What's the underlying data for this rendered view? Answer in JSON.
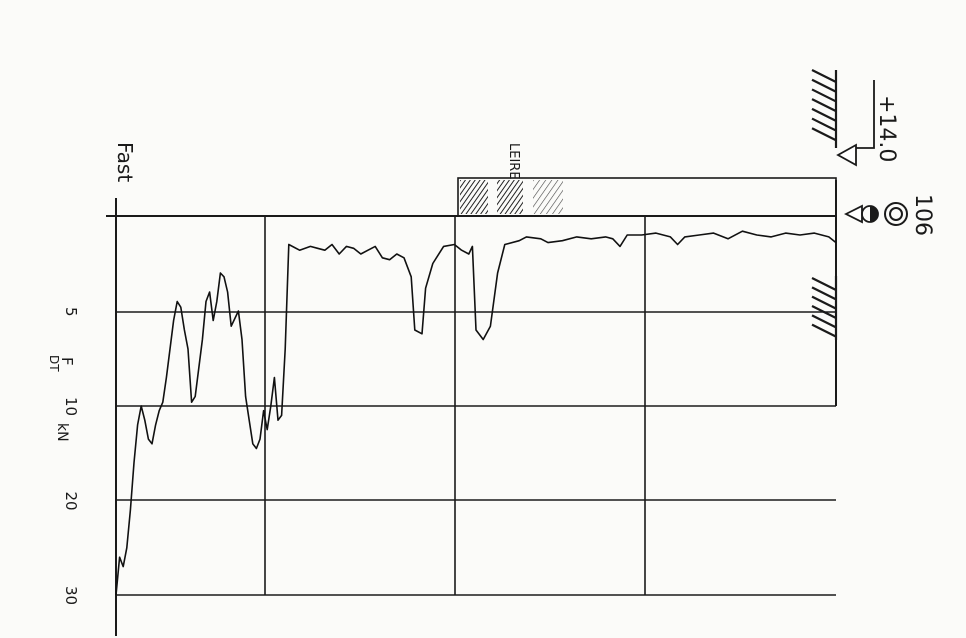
{
  "elevation": "+14.0",
  "borehole_id": "106",
  "soil_label": "LEIRE",
  "stop_label": "Fast",
  "axis": {
    "quantity": "F",
    "subscript": "DT",
    "unit": "kN",
    "ticks": [
      "5",
      "10",
      "20",
      "30"
    ]
  },
  "chart_data": {
    "type": "line",
    "title": "",
    "xlabel": "F DT kN",
    "ylabel": "",
    "xlim": [
      0,
      35
    ],
    "x_scale": "piecewise: 0–10 kN in equal 5 kN steps, 10–30 kN in equal 10 kN steps",
    "y_unit": "fraction of sounding length (0 = top, 1 = Fast)",
    "layers": [
      {
        "name": "LEIRE",
        "from": 0,
        "to": 0.53
      }
    ],
    "series": [
      {
        "name": "",
        "points": [
          [
            0.0,
            1.4
          ],
          [
            0.01,
            1.1
          ],
          [
            0.03,
            0.9
          ],
          [
            0.05,
            1.0
          ],
          [
            0.07,
            0.9
          ],
          [
            0.09,
            1.1
          ],
          [
            0.11,
            1.0
          ],
          [
            0.13,
            0.8
          ],
          [
            0.15,
            1.2
          ],
          [
            0.17,
            0.9
          ],
          [
            0.19,
            1.0
          ],
          [
            0.21,
            1.1
          ],
          [
            0.22,
            1.5
          ],
          [
            0.23,
            1.1
          ],
          [
            0.25,
            0.9
          ],
          [
            0.27,
            1.0
          ],
          [
            0.29,
            1.0
          ],
          [
            0.3,
            1.6
          ],
          [
            0.31,
            1.2
          ],
          [
            0.32,
            1.1
          ],
          [
            0.34,
            1.2
          ],
          [
            0.36,
            1.1
          ],
          [
            0.38,
            1.3
          ],
          [
            0.4,
            1.4
          ],
          [
            0.41,
            1.2
          ],
          [
            0.43,
            1.1
          ],
          [
            0.44,
            1.3
          ],
          [
            0.46,
            1.5
          ],
          [
            0.47,
            3.0
          ],
          [
            0.48,
            5.8
          ],
          [
            0.49,
            6.5
          ],
          [
            0.5,
            6.0
          ],
          [
            0.505,
            1.6
          ],
          [
            0.51,
            2.0
          ],
          [
            0.52,
            1.8
          ],
          [
            0.53,
            1.5
          ],
          [
            0.545,
            1.6
          ],
          [
            0.56,
            2.5
          ],
          [
            0.57,
            3.8
          ],
          [
            0.575,
            6.2
          ],
          [
            0.585,
            6.0
          ],
          [
            0.59,
            3.2
          ],
          [
            0.6,
            2.2
          ],
          [
            0.61,
            2.0
          ],
          [
            0.62,
            2.3
          ],
          [
            0.63,
            2.2
          ],
          [
            0.64,
            1.6
          ],
          [
            0.65,
            1.8
          ],
          [
            0.66,
            2.0
          ],
          [
            0.67,
            1.7
          ],
          [
            0.68,
            1.6
          ],
          [
            0.69,
            2.0
          ],
          [
            0.7,
            1.5
          ],
          [
            0.71,
            1.8
          ],
          [
            0.72,
            1.7
          ],
          [
            0.73,
            1.6
          ],
          [
            0.745,
            1.8
          ],
          [
            0.76,
            1.5
          ],
          [
            0.765,
            7.0
          ],
          [
            0.77,
            11.0
          ],
          [
            0.775,
            11.5
          ],
          [
            0.78,
            8.5
          ],
          [
            0.785,
            10.0
          ],
          [
            0.79,
            12.5
          ],
          [
            0.795,
            10.5
          ],
          [
            0.8,
            13.5
          ],
          [
            0.805,
            14.5
          ],
          [
            0.81,
            14.0
          ],
          [
            0.815,
            11.5
          ],
          [
            0.82,
            9.5
          ],
          [
            0.825,
            6.5
          ],
          [
            0.83,
            5.0
          ],
          [
            0.84,
            5.8
          ],
          [
            0.845,
            4.0
          ],
          [
            0.85,
            3.2
          ],
          [
            0.855,
            3.0
          ],
          [
            0.86,
            4.5
          ],
          [
            0.865,
            5.5
          ],
          [
            0.87,
            4.0
          ],
          [
            0.875,
            4.5
          ],
          [
            0.88,
            6.5
          ],
          [
            0.885,
            8.0
          ],
          [
            0.89,
            9.5
          ],
          [
            0.895,
            9.8
          ],
          [
            0.9,
            7.0
          ],
          [
            0.905,
            6.0
          ],
          [
            0.91,
            4.8
          ],
          [
            0.915,
            4.5
          ],
          [
            0.92,
            5.5
          ],
          [
            0.925,
            7.0
          ],
          [
            0.93,
            8.5
          ],
          [
            0.935,
            9.8
          ],
          [
            0.94,
            10.5
          ],
          [
            0.945,
            12.0
          ],
          [
            0.95,
            14.0
          ],
          [
            0.955,
            13.5
          ],
          [
            0.96,
            11.5
          ],
          [
            0.965,
            10.0
          ],
          [
            0.97,
            12.0
          ],
          [
            0.975,
            16.0
          ],
          [
            0.98,
            21.0
          ],
          [
            0.985,
            25.0
          ],
          [
            0.99,
            27.0
          ],
          [
            0.995,
            26.0
          ],
          [
            1.0,
            30.0
          ]
        ]
      }
    ]
  }
}
